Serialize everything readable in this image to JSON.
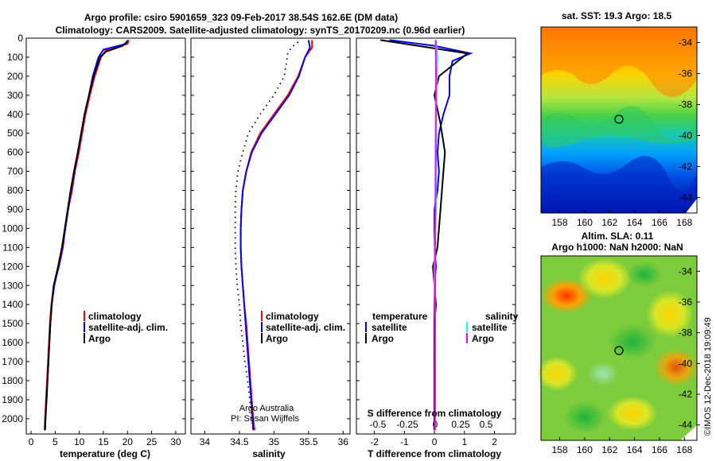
{
  "header": {
    "line1": "Argo profile: csiro 5901659_323 09-Feb-2017 38.54S 162.6E (DM data)",
    "line2": "Climatology: CARS2009. Satellite-adjusted climatology: synTS_20170209.nc (0.96d earlier)"
  },
  "colors": {
    "climatology": "#ff0000",
    "satellite": "#0000ff",
    "argo": "#000000",
    "satellite_s": "#00ffff",
    "argo_s": "#ff00ff"
  },
  "credit": {
    "line1": "Argo Australia",
    "line2": "PI: Susan Wijffels"
  },
  "stamp": "©IMOS 12-Dec-2018 19:09:49",
  "chart_data": [
    {
      "type": "line",
      "name": "temperature",
      "xlabel": "temperature (deg C)",
      "ylabel": "",
      "xlim": [
        -1,
        32
      ],
      "ylim": [
        2080,
        0
      ],
      "xticks": [
        0,
        5,
        10,
        15,
        20,
        25,
        30
      ],
      "xtick_labels": [
        "0",
        "5",
        "10",
        "15",
        "20",
        "25",
        "30"
      ],
      "yticks": [
        0,
        100,
        200,
        300,
        400,
        500,
        600,
        700,
        800,
        900,
        1000,
        1100,
        1200,
        1300,
        1400,
        1500,
        1600,
        1700,
        1800,
        1900,
        2000
      ],
      "ytick_labels": [
        "0",
        "100",
        "200",
        "300",
        "400",
        "500",
        "600",
        "700",
        "800",
        "900",
        "1000",
        "1100",
        "1200",
        "1300",
        "1400",
        "1500",
        "1600",
        "1700",
        "1800",
        "1900",
        "2000"
      ],
      "legend": [
        "climatology",
        "satellite-adj. clim.",
        "Argo"
      ],
      "series": [
        {
          "name": "climatology",
          "color": "#ff0000",
          "points": [
            [
              20.3,
              10
            ],
            [
              20,
              30
            ],
            [
              15.6,
              60
            ],
            [
              14.5,
              100
            ],
            [
              13.2,
              200
            ],
            [
              12.2,
              300
            ],
            [
              11.3,
              400
            ],
            [
              10.6,
              500
            ],
            [
              9.9,
              600
            ],
            [
              9.1,
              700
            ],
            [
              8.5,
              800
            ],
            [
              7.7,
              900
            ],
            [
              7.1,
              1000
            ],
            [
              6.6,
              1100
            ],
            [
              5.8,
              1200
            ],
            [
              4.7,
              1300
            ],
            [
              4.2,
              1400
            ],
            [
              3.9,
              1500
            ],
            [
              3.7,
              1600
            ],
            [
              3.5,
              1700
            ],
            [
              3.3,
              1800
            ],
            [
              3.1,
              1900
            ],
            [
              2.9,
              2000
            ],
            [
              2.8,
              2060
            ]
          ]
        },
        {
          "name": "satellite",
          "color": "#0000ff",
          "points": [
            [
              20,
              10
            ],
            [
              19.7,
              30
            ],
            [
              15,
              60
            ],
            [
              14,
              100
            ],
            [
              12.8,
              200
            ],
            [
              12,
              300
            ],
            [
              11.1,
              400
            ],
            [
              10.4,
              500
            ],
            [
              9.7,
              600
            ],
            [
              9,
              700
            ],
            [
              8.3,
              800
            ],
            [
              7.7,
              900
            ],
            [
              7.1,
              1000
            ],
            [
              6.5,
              1100
            ],
            [
              5.7,
              1200
            ],
            [
              4.8,
              1300
            ],
            [
              4.3,
              1400
            ],
            [
              4,
              1500
            ],
            [
              3.8,
              1600
            ],
            [
              3.6,
              1700
            ],
            [
              3.4,
              1800
            ],
            [
              3.2,
              1900
            ],
            [
              3,
              2000
            ],
            [
              2.9,
              2060
            ]
          ]
        },
        {
          "name": "Argo",
          "color": "#000000",
          "points": [
            [
              19.8,
              20
            ],
            [
              19,
              40
            ],
            [
              15.6,
              70
            ],
            [
              14.3,
              100
            ],
            [
              13,
              200
            ],
            [
              12,
              300
            ],
            [
              11.1,
              400
            ],
            [
              10.4,
              500
            ],
            [
              9.7,
              600
            ],
            [
              8.9,
              700
            ],
            [
              8.2,
              800
            ],
            [
              7.6,
              900
            ],
            [
              7,
              1000
            ],
            [
              6.4,
              1100
            ],
            [
              5.6,
              1200
            ],
            [
              4.7,
              1300
            ],
            [
              4.3,
              1400
            ],
            [
              4,
              1500
            ],
            [
              3.8,
              1600
            ],
            [
              3.6,
              1700
            ],
            [
              3.4,
              1800
            ],
            [
              3.2,
              1900
            ],
            [
              3,
              2000
            ],
            [
              2.9,
              2060
            ]
          ]
        }
      ]
    },
    {
      "type": "line",
      "name": "salinity",
      "xlabel": "salinity",
      "xlim": [
        33.8,
        36.1
      ],
      "ylim": [
        2080,
        0
      ],
      "xticks": [
        34,
        34.5,
        35,
        35.5,
        36
      ],
      "xtick_labels": [
        "34",
        "34.5",
        "35",
        "35.5",
        "36"
      ],
      "legend": [
        "climatology",
        "satellite-adj. clim.",
        "Argo"
      ],
      "series": [
        {
          "name": "climatology",
          "color": "#ff0000",
          "points": [
            [
              35.55,
              10
            ],
            [
              35.55,
              50
            ],
            [
              35.45,
              100
            ],
            [
              35.35,
              200
            ],
            [
              35.2,
              300
            ],
            [
              35.0,
              400
            ],
            [
              34.8,
              500
            ],
            [
              34.67,
              600
            ],
            [
              34.6,
              700
            ],
            [
              34.55,
              800
            ],
            [
              34.53,
              900
            ],
            [
              34.52,
              1000
            ],
            [
              34.52,
              1100
            ],
            [
              34.53,
              1200
            ],
            [
              34.55,
              1300
            ],
            [
              34.57,
              1400
            ],
            [
              34.6,
              1500
            ],
            [
              34.62,
              1600
            ],
            [
              34.64,
              1700
            ],
            [
              34.66,
              1800
            ],
            [
              34.68,
              1900
            ],
            [
              34.7,
              2000
            ],
            [
              34.72,
              2060
            ]
          ]
        },
        {
          "name": "satellite",
          "color": "#0000ff",
          "points": [
            [
              35.5,
              10
            ],
            [
              35.52,
              50
            ],
            [
              35.45,
              100
            ],
            [
              35.36,
              200
            ],
            [
              35.22,
              300
            ],
            [
              35.02,
              400
            ],
            [
              34.82,
              500
            ],
            [
              34.68,
              600
            ],
            [
              34.6,
              700
            ],
            [
              34.55,
              800
            ],
            [
              34.53,
              900
            ],
            [
              34.52,
              1000
            ],
            [
              34.52,
              1100
            ],
            [
              34.53,
              1200
            ],
            [
              34.55,
              1300
            ],
            [
              34.57,
              1400
            ],
            [
              34.59,
              1500
            ],
            [
              34.61,
              1600
            ],
            [
              34.63,
              1700
            ],
            [
              34.65,
              1800
            ],
            [
              34.67,
              1900
            ],
            [
              34.69,
              2000
            ],
            [
              34.7,
              2060
            ]
          ]
        },
        {
          "name": "Argo",
          "color": "#000000",
          "points": [
            [
              35.35,
              20
            ],
            [
              35.25,
              50
            ],
            [
              35.2,
              80
            ],
            [
              35.15,
              200
            ],
            [
              35.0,
              300
            ],
            [
              34.8,
              400
            ],
            [
              34.63,
              500
            ],
            [
              34.55,
              600
            ],
            [
              34.48,
              700
            ],
            [
              34.45,
              800
            ],
            [
              34.44,
              900
            ],
            [
              34.44,
              1000
            ],
            [
              34.44,
              1100
            ],
            [
              34.45,
              1200
            ],
            [
              34.47,
              1300
            ],
            [
              34.5,
              1400
            ],
            [
              34.52,
              1500
            ],
            [
              34.55,
              1600
            ],
            [
              34.58,
              1700
            ],
            [
              34.62,
              1800
            ],
            [
              34.65,
              1900
            ],
            [
              34.68,
              2000
            ],
            [
              34.7,
              2060
            ]
          ]
        }
      ],
      "annotations": [
        "Argo Australia",
        "PI: Susan Wijffels"
      ]
    },
    {
      "type": "line",
      "name": "difference",
      "xlabel": "T difference from climatology",
      "xlabel_top": "S difference from climatology",
      "xlim": [
        -2.6,
        2.7
      ],
      "ylim": [
        2080,
        0
      ],
      "xticks": [
        -2,
        -1,
        0,
        1,
        2
      ],
      "xtick_labels": [
        "-2",
        "-1",
        "0",
        "1",
        "2"
      ],
      "sticks": [
        "-0.5",
        "-0.25",
        "0",
        "0.25",
        "0.5"
      ],
      "legend_headers": [
        "temperature",
        "salinity"
      ],
      "legend": [
        "satellite",
        "Argo",
        "satellite",
        "Argo"
      ],
      "series": [
        {
          "name": "T satellite",
          "color": "#0000ff",
          "points": [
            [
              -1.5,
              10
            ],
            [
              0,
              40
            ],
            [
              1.2,
              80
            ],
            [
              0.6,
              120
            ],
            [
              0.5,
              200
            ],
            [
              0.5,
              300
            ],
            [
              0.3,
              400
            ],
            [
              0.15,
              500
            ],
            [
              0.1,
              600
            ],
            [
              0.15,
              700
            ],
            [
              0.1,
              800
            ],
            [
              0,
              900
            ],
            [
              0,
              1000
            ],
            [
              0,
              1100
            ],
            [
              0.05,
              1200
            ],
            [
              0,
              1300
            ],
            [
              0,
              1400
            ],
            [
              0,
              1500
            ],
            [
              0,
              1600
            ],
            [
              0,
              1700
            ],
            [
              0,
              1800
            ],
            [
              0,
              1900
            ],
            [
              0,
              2000
            ],
            [
              0,
              2060
            ]
          ]
        },
        {
          "name": "T Argo",
          "color": "#000000",
          "points": [
            [
              -1.8,
              10
            ],
            [
              1.1,
              80
            ],
            [
              0.15,
              200
            ],
            [
              0,
              300
            ],
            [
              0.2,
              450
            ],
            [
              0.35,
              600
            ],
            [
              0.3,
              700
            ],
            [
              0.25,
              800
            ],
            [
              0.2,
              900
            ],
            [
              0.15,
              1000
            ],
            [
              0.1,
              1100
            ],
            [
              -0.05,
              1200
            ],
            [
              0,
              1300
            ],
            [
              0.05,
              1400
            ],
            [
              0,
              1500
            ],
            [
              0,
              1600
            ],
            [
              0,
              1700
            ],
            [
              0,
              1800
            ],
            [
              0,
              1900
            ],
            [
              0,
              2000
            ],
            [
              0,
              2060
            ]
          ]
        },
        {
          "name": "S satellite",
          "color": "#00ffff",
          "points": [
            [
              0.05,
              10
            ],
            [
              0.1,
              100
            ],
            [
              0.08,
              200
            ],
            [
              0.05,
              400
            ],
            [
              0.05,
              700
            ],
            [
              0.05,
              900
            ],
            [
              0,
              1100
            ],
            [
              0,
              1300
            ],
            [
              0.03,
              1500
            ],
            [
              0.02,
              1700
            ],
            [
              0.02,
              1900
            ],
            [
              0.02,
              2060
            ]
          ]
        },
        {
          "name": "S Argo",
          "color": "#ff00ff",
          "points": [
            [
              0.04,
              10
            ],
            [
              0.05,
              200
            ],
            [
              0.04,
              600
            ],
            [
              0.03,
              1000
            ],
            [
              0.02,
              1400
            ],
            [
              0.02,
              2060
            ]
          ]
        }
      ]
    },
    {
      "type": "heatmap",
      "name": "sst-map",
      "title": "sat. SST: 19.3 Argo: 18.5",
      "xlim": [
        156.5,
        169
      ],
      "ylim": [
        -45,
        -33
      ],
      "xtick_labels": [
        "158",
        "160",
        "162",
        "164",
        "166",
        "168"
      ],
      "ytick_labels": [
        "-34",
        "-36",
        "-38",
        "-40",
        "-42",
        "-44"
      ],
      "marker": {
        "lon": 162.6,
        "lat": -38.54
      }
    },
    {
      "type": "heatmap",
      "name": "sla-map",
      "title_line1": "Altim. SLA: 0.11",
      "title_line2": "Argo h1000: NaN h2000: NaN",
      "xlim": [
        156.5,
        169
      ],
      "ylim": [
        -45,
        -33
      ],
      "xtick_labels": [
        "158",
        "160",
        "162",
        "164",
        "166",
        "168"
      ],
      "ytick_labels": [
        "-34",
        "-36",
        "-38",
        "-40",
        "-42",
        "-44"
      ],
      "marker": {
        "lon": 162.6,
        "lat": -38.54
      }
    }
  ]
}
